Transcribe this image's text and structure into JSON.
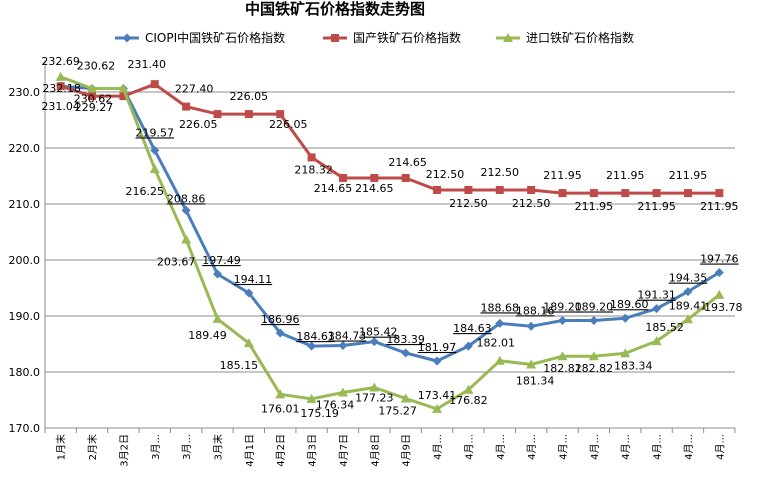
{
  "chart_data": {
    "type": "line",
    "title": "中国铁矿石价格指数走势图",
    "xlabel": "",
    "ylabel": "",
    "ylim": [
      170,
      235
    ],
    "yticks": [
      "170.0",
      "180.0",
      "190.0",
      "200.0",
      "210.0",
      "220.0",
      "230.0"
    ],
    "grid": true,
    "legend_position": "top",
    "categories": [
      "1月末",
      "2月末",
      "3月2日",
      "3月...",
      "3月...",
      "3月末",
      "4月1日",
      "4月2日",
      "4月3日",
      "4月7日",
      "4月8日",
      "4月9日",
      "4月...",
      "4月...",
      "4月...",
      "4月...",
      "4月...",
      "4月...",
      "4月...",
      "4月...",
      "4月...",
      "4月..."
    ],
    "series": [
      {
        "name": "CIOPI中国铁矿石价格指数",
        "color": "#4a7ebb",
        "marker": "diamond",
        "values": [
          231.04,
          230.62,
          230.62,
          219.57,
          208.86,
          197.49,
          194.11,
          186.96,
          184.63,
          184.73,
          185.42,
          183.39,
          181.97,
          184.63,
          188.68,
          188.16,
          189.2,
          189.2,
          189.6,
          191.31,
          194.35,
          197.76
        ],
        "labels": [
          "231.04",
          "230.62",
          "",
          "219.57",
          "208.86",
          "197.49",
          "194.11",
          "186.96",
          "184.63",
          "184.73",
          "185.42",
          "183.39",
          "181.97",
          "184.63",
          "188.68",
          "188.16",
          "189.20",
          "189.20",
          "189.60",
          "191.31",
          "194.35",
          "197.76"
        ]
      },
      {
        "name": "国产铁矿石价格指数",
        "color": "#be4b48",
        "marker": "square",
        "values": [
          231.04,
          229.27,
          229.27,
          231.4,
          227.4,
          226.05,
          226.05,
          226.05,
          218.32,
          214.65,
          214.65,
          214.65,
          212.5,
          212.5,
          212.5,
          212.5,
          211.95,
          211.95,
          211.95,
          211.95,
          211.95,
          211.95
        ],
        "labels": [
          "",
          "229.27",
          "",
          "231.40",
          "227.40",
          "226.05",
          "226.05",
          "226.05",
          "218.32",
          "214.65",
          "214.65",
          "214.65",
          "212.50",
          "212.50",
          "212.50",
          "212.50",
          "211.95",
          "211.95",
          "211.95",
          "211.95",
          "211.95",
          "211.95"
        ]
      },
      {
        "name": "进口铁矿石价格指数",
        "color": "#98b954",
        "marker": "triangle",
        "values": [
          232.69,
          230.62,
          230.62,
          216.25,
          203.67,
          189.49,
          185.15,
          176.01,
          175.19,
          176.34,
          177.23,
          175.27,
          173.41,
          176.82,
          182.01,
          181.34,
          182.82,
          182.82,
          183.34,
          185.52,
          189.41,
          193.78
        ],
        "labels": [
          "232.69",
          "",
          "",
          "216.25",
          "203.67",
          "189.49",
          "185.15",
          "176.01",
          "175.19",
          "176.34",
          "177.23",
          "175.27",
          "173.41",
          "176.82",
          "182.01",
          "181.34",
          "182.82",
          "182.82",
          "183.34",
          "185.52",
          "189.41",
          "193.78"
        ]
      }
    ],
    "extra_labels": [
      "232.18",
      "230.62"
    ]
  }
}
